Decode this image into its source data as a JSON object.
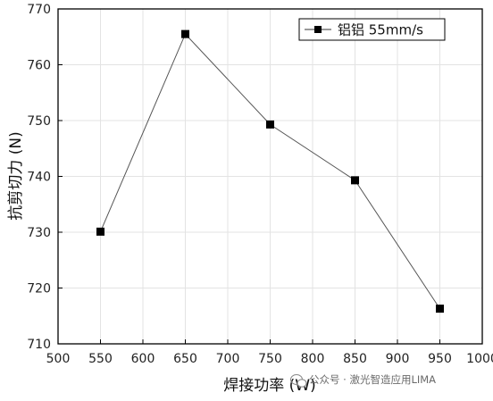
{
  "chart_data": {
    "type": "line",
    "xlabel": "焊接功率 (W)",
    "ylabel": "抗剪切力 (N)",
    "xlim": [
      500,
      1000
    ],
    "ylim": [
      710,
      770
    ],
    "x_ticks": [
      500,
      550,
      600,
      650,
      700,
      750,
      800,
      850,
      900,
      950,
      1000
    ],
    "y_ticks": [
      710,
      720,
      730,
      740,
      750,
      760,
      770
    ],
    "grid": true,
    "legend_position": "top-right",
    "series": [
      {
        "name": "铝铝 55mm/s",
        "x": [
          550,
          650,
          750,
          850,
          950
        ],
        "y": [
          730.1,
          765.5,
          749.3,
          739.3,
          716.3
        ]
      }
    ]
  },
  "watermark": {
    "text": "公众号 · 激光智造应用LIMA",
    "icon": "wechat-icon"
  }
}
